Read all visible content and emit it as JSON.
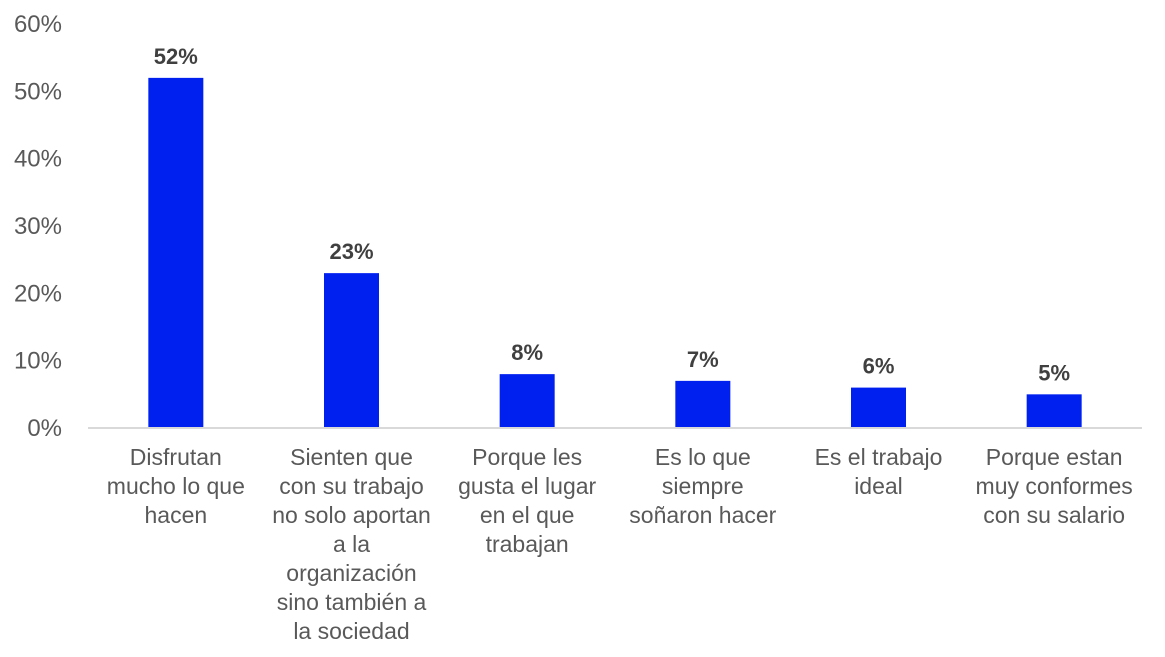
{
  "chart_data": {
    "type": "bar",
    "title": "",
    "xlabel": "",
    "ylabel": "",
    "categories": [
      [
        "Disfrutan",
        "mucho lo que",
        "hacen"
      ],
      [
        "Sienten que",
        "con su trabajo",
        "no solo aportan",
        "a la",
        "organización",
        "sino también a",
        "la sociedad"
      ],
      [
        "Porque les",
        "gusta el lugar",
        "en el que",
        "trabajan"
      ],
      [
        "Es lo que",
        "siempre",
        "soñaron hacer"
      ],
      [
        "Es el trabajo",
        "ideal"
      ],
      [
        "Porque estan",
        "muy conformes",
        "con su salario"
      ]
    ],
    "values": [
      52,
      23,
      8,
      7,
      6,
      5
    ],
    "data_labels": [
      "52%",
      "23%",
      "8%",
      "7%",
      "6%",
      "5%"
    ],
    "ylim": [
      0,
      60
    ],
    "yticks": [
      0,
      10,
      20,
      30,
      40,
      50,
      60
    ],
    "ytick_labels": [
      "0%",
      "10%",
      "20%",
      "30%",
      "40%",
      "50%",
      "60%"
    ],
    "grid": false,
    "bar_color": "#0020F0",
    "axis_color": "#D9D9D9"
  }
}
